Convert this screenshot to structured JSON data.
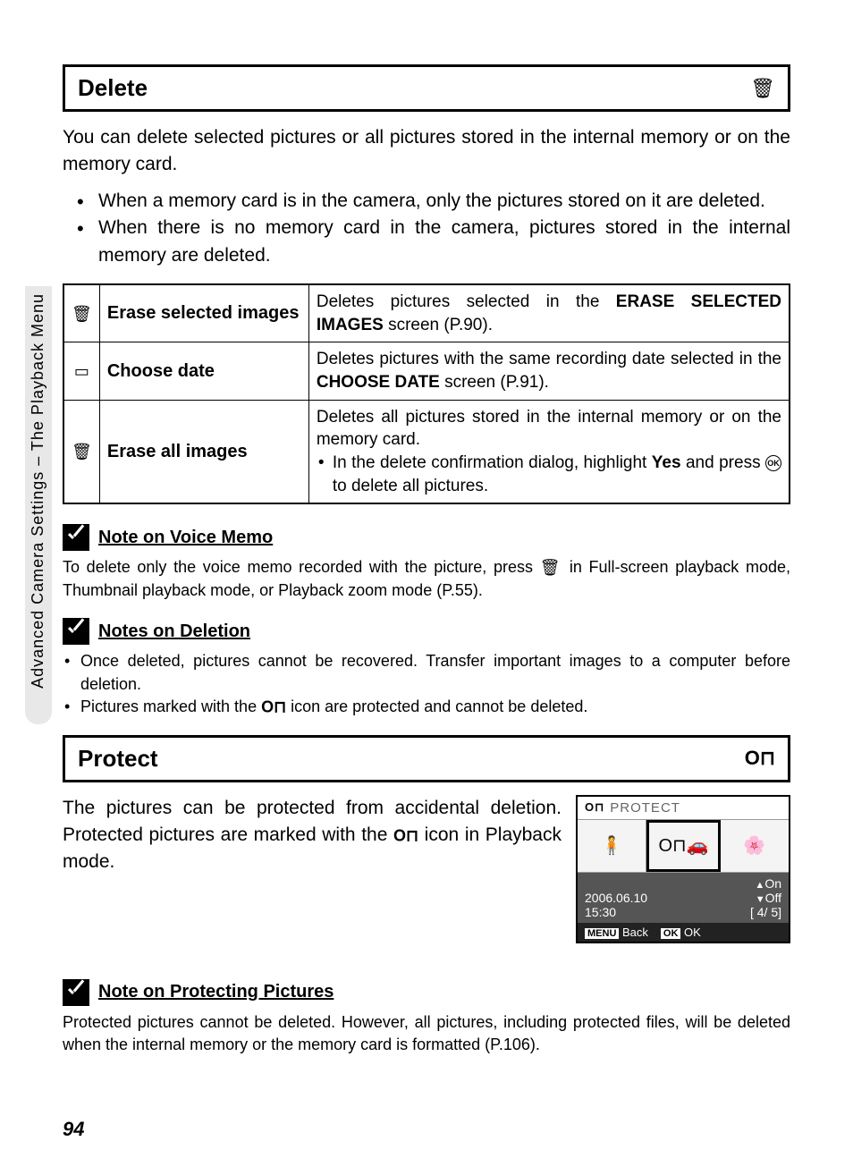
{
  "sidebar": {
    "label": "Advanced Camera Settings – The Playback Menu"
  },
  "delete": {
    "title": "Delete",
    "icon": "🗑",
    "intro": "You can delete selected pictures or all pictures stored in the internal memory or on the memory card.",
    "bullets": [
      "When a memory card is in the camera, only the pictures stored on it are deleted.",
      "When there is no memory card in the camera, pictures stored in the internal memory are deleted."
    ],
    "table": [
      {
        "icon": "🗑",
        "label": "Erase selected images",
        "desc_pre": "Deletes pictures selected in the ",
        "desc_bold": "ERASE SELECTED IMAGES",
        "desc_post": " screen (P.90)."
      },
      {
        "icon": "▭",
        "label": "Choose date",
        "desc_pre": "Deletes pictures with the same recording date selected in the ",
        "desc_bold": "CHOOSE DATE",
        "desc_post": " screen (P.91)."
      },
      {
        "icon": "🗑",
        "label": "Erase all images",
        "desc_main": "Deletes all pictures stored in the internal memory or on the memory card.",
        "sub_pre": "In the delete confirmation dialog, highlight ",
        "sub_bold": "Yes",
        "sub_mid": " and press ",
        "sub_ok": "OK",
        "sub_post": " to delete all pictures."
      }
    ]
  },
  "note_voice": {
    "title": "Note on Voice Memo",
    "body_pre": "To delete only the voice memo recorded with the picture, press ",
    "body_icon": "🗑",
    "body_post": " in Full-screen playback mode, Thumbnail playback mode, or Playback zoom mode (P.55)."
  },
  "note_deletion": {
    "title": "Notes on Deletion",
    "items": [
      {
        "text": "Once deleted, pictures cannot be recovered. Transfer important images to a computer before deletion."
      },
      {
        "pre": "Pictures marked with the ",
        "icon": "O⊓",
        "post": " icon are protected and cannot be deleted."
      }
    ]
  },
  "protect": {
    "title": "Protect",
    "icon": "O⊓",
    "text_pre": "The pictures can be protected from accidental deletion. Protected pictures are marked with the ",
    "text_icon": "O⊓",
    "text_post": " icon in Playback mode.",
    "screen": {
      "key_icon": "O⊓",
      "title": "PROTECT",
      "on_label": "On",
      "off_label": "Off",
      "date": "2006.06.10",
      "time": "15:30",
      "counter": "[    4/    5]",
      "back_btn": "MENU",
      "back_label": "Back",
      "ok_btn": "OK",
      "ok_label": "OK"
    }
  },
  "note_protect": {
    "title": "Note on Protecting Pictures",
    "body": "Protected pictures cannot be deleted. However, all pictures, including protected files, will be deleted when the internal memory or the memory card is formatted (P.106)."
  },
  "page_number": "94"
}
